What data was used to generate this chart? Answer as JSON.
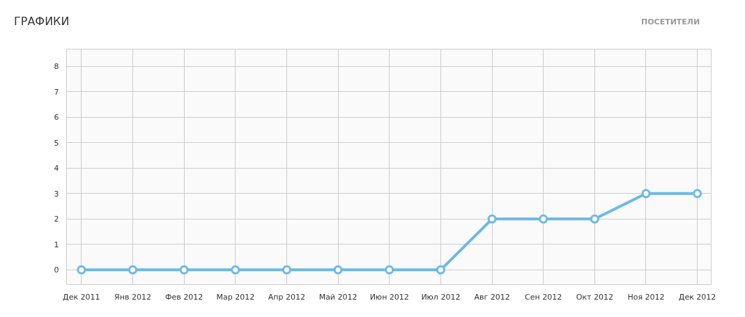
{
  "chart_data": {
    "type": "line",
    "title": "ГРАФИКИ",
    "annotations": [
      "ПОСЕТИТЕЛИ"
    ],
    "categories": [
      "Дек 2011",
      "Янв 2012",
      "Фев 2012",
      "Мар 2012",
      "Апр 2012",
      "Май 2012",
      "Июн 2012",
      "Июл 2012",
      "Авг 2012",
      "Сен 2012",
      "Окт 2012",
      "Ноя 2012",
      "Дек 2012"
    ],
    "series": [
      {
        "color": "#6cb8e6",
        "values": [
          0,
          0,
          0,
          0,
          0,
          0,
          0,
          0,
          2,
          2,
          2,
          3,
          3
        ]
      }
    ],
    "ylim": [
      -0.58,
      8.68
    ],
    "yticks": [
      0,
      1,
      2,
      3,
      4,
      5,
      6,
      7,
      8
    ],
    "grid": true,
    "marker": "circle",
    "line_style": "solid"
  }
}
